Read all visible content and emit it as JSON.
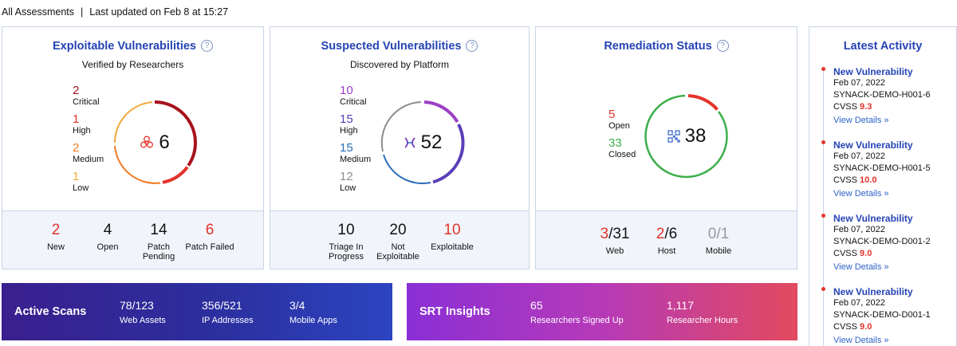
{
  "header": {
    "scope": "All Assessments",
    "separator": "|",
    "updated": "Last updated on Feb 8 at 15:27"
  },
  "help_glyph": "?",
  "exploitable": {
    "title": "Exploitable Vulnerabilities",
    "subtitle": "Verified by Researchers",
    "total": "6",
    "icon": "biohazard-icon",
    "legend": [
      {
        "value": "2",
        "label": "Critical",
        "color": "#a8121b"
      },
      {
        "value": "1",
        "label": "High",
        "color": "#e5332a"
      },
      {
        "value": "2",
        "label": "Medium",
        "color": "#f07a22"
      },
      {
        "value": "1",
        "label": "Low",
        "color": "#f2a93a"
      }
    ],
    "stats": [
      {
        "value": "2",
        "caption": "New",
        "color": "#e5332a"
      },
      {
        "value": "4",
        "caption": "Open",
        "color": "#111111"
      },
      {
        "value": "14",
        "caption": "Patch Pending",
        "color": "#111111"
      },
      {
        "value": "6",
        "caption": "Patch Failed",
        "color": "#e5332a"
      }
    ]
  },
  "suspected": {
    "title": "Suspected Vulnerabilities",
    "subtitle": "Discovered by Platform",
    "total": "52",
    "icon": "hourglass-icon",
    "legend": [
      {
        "value": "10",
        "label": "Critical",
        "color": "#9b3fc6"
      },
      {
        "value": "15",
        "label": "High",
        "color": "#5b3fb8"
      },
      {
        "value": "15",
        "label": "Medium",
        "color": "#2a6cb9"
      },
      {
        "value": "12",
        "label": "Low",
        "color": "#8d8d8d"
      }
    ],
    "stats": [
      {
        "value": "10",
        "caption": "Triage In Progress",
        "color": "#111111"
      },
      {
        "value": "20",
        "caption": "Not Exploitable",
        "color": "#111111"
      },
      {
        "value": "10",
        "caption": "Exploitable",
        "color": "#e5332a"
      }
    ]
  },
  "remediation": {
    "title": "Remediation Status",
    "total": "38",
    "icon": "qr-grid-icon",
    "legend": [
      {
        "value": "5",
        "label": "Open",
        "color": "#e5332a"
      },
      {
        "value": "33",
        "label": "Closed",
        "color": "#3cae4a"
      }
    ],
    "stats": [
      {
        "value": "3",
        "suffix": "/31",
        "caption": "Web",
        "color": "#e5332a"
      },
      {
        "value": "2",
        "suffix": "/6",
        "caption": "Host",
        "color": "#e5332a"
      },
      {
        "value": "0",
        "suffix": "/1",
        "caption": "Mobile",
        "color": "#999999"
      }
    ]
  },
  "active_scans": {
    "title": "Active Scans",
    "metrics": [
      {
        "value": "78/123",
        "caption": "Web Assets"
      },
      {
        "value": "356/521",
        "caption": "IP Addresses"
      },
      {
        "value": "3/4",
        "caption": "Mobile Apps"
      }
    ]
  },
  "srt": {
    "title": "SRT Insights",
    "metrics": [
      {
        "value": "65",
        "caption": "Researchers Signed Up"
      },
      {
        "value": "1,117",
        "caption": "Researcher Hours"
      }
    ]
  },
  "activity": {
    "title": "Latest Activity",
    "items": [
      {
        "heading": "New Vulnerability",
        "date": "Feb 07, 2022",
        "id": "SYNACK-DEMO-H001-6",
        "cvss_label": "CVSS",
        "cvss": "9.3",
        "link": "View Details »"
      },
      {
        "heading": "New Vulnerability",
        "date": "Feb 07, 2022",
        "id": "SYNACK-DEMO-H001-5",
        "cvss_label": "CVSS",
        "cvss": "10.0",
        "link": "View Details »"
      },
      {
        "heading": "New Vulnerability",
        "date": "Feb 07, 2022",
        "id": "SYNACK-DEMO-D001-2",
        "cvss_label": "CVSS",
        "cvss": "9.0",
        "link": "View Details »"
      },
      {
        "heading": "New Vulnerability",
        "date": "Feb 07, 2022",
        "id": "SYNACK-DEMO-D001-1",
        "cvss_label": "CVSS",
        "cvss": "9.0",
        "link": "View Details »"
      }
    ]
  }
}
